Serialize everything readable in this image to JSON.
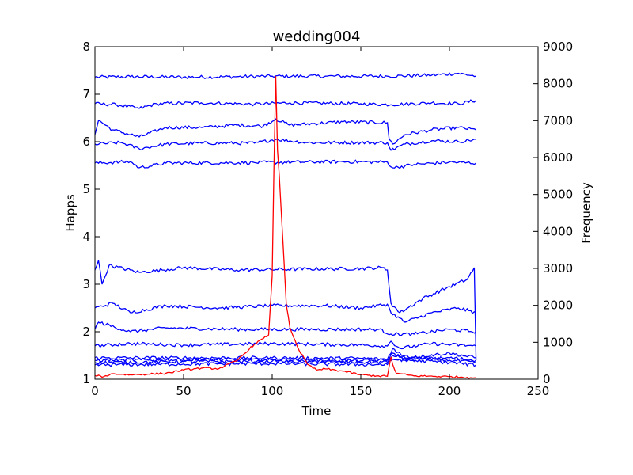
{
  "chart_data": {
    "type": "line",
    "title": "wedding004",
    "xlabel": "Time",
    "ylabel": "Happs",
    "y2label": "Frequency",
    "xlim": [
      0,
      250
    ],
    "ylim": [
      1,
      8
    ],
    "y2lim": [
      0,
      9000
    ],
    "xticks": [
      0,
      50,
      100,
      150,
      200,
      250
    ],
    "yticks": [
      1,
      2,
      3,
      4,
      5,
      6,
      7,
      8
    ],
    "y2ticks": [
      0,
      1000,
      2000,
      3000,
      4000,
      5000,
      6000,
      7000,
      8000,
      9000
    ],
    "grid": false,
    "x_range": [
      0,
      215
    ],
    "colors": {
      "happs": "#0000ff",
      "frequency": "#ff0000"
    },
    "series": [
      {
        "axis": "left",
        "color": "#0000ff",
        "points": [
          [
            0,
            7.36
          ],
          [
            20,
            7.37
          ],
          [
            50,
            7.36
          ],
          [
            80,
            7.37
          ],
          [
            100,
            7.38
          ],
          [
            130,
            7.38
          ],
          [
            165,
            7.38
          ],
          [
            190,
            7.4
          ],
          [
            205,
            7.44
          ],
          [
            215,
            7.38
          ]
        ]
      },
      {
        "axis": "left",
        "color": "#0000ff",
        "points": [
          [
            0,
            6.8
          ],
          [
            12,
            6.78
          ],
          [
            25,
            6.7
          ],
          [
            35,
            6.8
          ],
          [
            60,
            6.82
          ],
          [
            90,
            6.79
          ],
          [
            110,
            6.82
          ],
          [
            150,
            6.8
          ],
          [
            167,
            6.78
          ],
          [
            190,
            6.82
          ],
          [
            205,
            6.8
          ],
          [
            215,
            6.87
          ]
        ]
      },
      {
        "axis": "left",
        "color": "#0000ff",
        "points": [
          [
            0,
            6.15
          ],
          [
            2,
            6.45
          ],
          [
            10,
            6.25
          ],
          [
            25,
            6.1
          ],
          [
            40,
            6.3
          ],
          [
            60,
            6.3
          ],
          [
            80,
            6.35
          ],
          [
            95,
            6.33
          ],
          [
            102,
            6.48
          ],
          [
            110,
            6.35
          ],
          [
            140,
            6.42
          ],
          [
            165,
            6.4
          ],
          [
            166,
            6.05
          ],
          [
            168,
            5.95
          ],
          [
            175,
            6.15
          ],
          [
            190,
            6.25
          ],
          [
            205,
            6.3
          ],
          [
            215,
            6.25
          ]
        ]
      },
      {
        "axis": "left",
        "color": "#0000ff",
        "points": [
          [
            0,
            5.95
          ],
          [
            15,
            5.98
          ],
          [
            25,
            5.85
          ],
          [
            40,
            5.95
          ],
          [
            60,
            5.97
          ],
          [
            90,
            5.97
          ],
          [
            102,
            6.05
          ],
          [
            120,
            5.98
          ],
          [
            165,
            5.98
          ],
          [
            167,
            5.82
          ],
          [
            175,
            5.95
          ],
          [
            190,
            6.02
          ],
          [
            205,
            6.0
          ],
          [
            215,
            6.05
          ]
        ]
      },
      {
        "axis": "left",
        "color": "#0000ff",
        "points": [
          [
            0,
            5.55
          ],
          [
            20,
            5.58
          ],
          [
            25,
            5.45
          ],
          [
            40,
            5.55
          ],
          [
            90,
            5.56
          ],
          [
            140,
            5.58
          ],
          [
            165,
            5.57
          ],
          [
            168,
            5.45
          ],
          [
            180,
            5.52
          ],
          [
            200,
            5.57
          ],
          [
            215,
            5.55
          ]
        ]
      },
      {
        "axis": "left",
        "color": "#0000ff",
        "points": [
          [
            0,
            3.3
          ],
          [
            2,
            3.5
          ],
          [
            4,
            3.0
          ],
          [
            8,
            3.4
          ],
          [
            25,
            3.25
          ],
          [
            50,
            3.35
          ],
          [
            80,
            3.3
          ],
          [
            120,
            3.32
          ],
          [
            150,
            3.33
          ],
          [
            162,
            3.35
          ],
          [
            165,
            3.3
          ],
          [
            167,
            2.6
          ],
          [
            172,
            2.4
          ],
          [
            185,
            2.7
          ],
          [
            200,
            2.95
          ],
          [
            210,
            3.1
          ],
          [
            214,
            3.35
          ],
          [
            215,
            1.4
          ]
        ]
      },
      {
        "axis": "left",
        "color": "#0000ff",
        "points": [
          [
            0,
            2.5
          ],
          [
            10,
            2.6
          ],
          [
            20,
            2.4
          ],
          [
            40,
            2.55
          ],
          [
            70,
            2.5
          ],
          [
            100,
            2.55
          ],
          [
            130,
            2.55
          ],
          [
            150,
            2.5
          ],
          [
            165,
            2.58
          ],
          [
            167,
            2.4
          ],
          [
            175,
            2.2
          ],
          [
            190,
            2.4
          ],
          [
            205,
            2.5
          ],
          [
            215,
            2.4
          ]
        ]
      },
      {
        "axis": "left",
        "color": "#0000ff",
        "points": [
          [
            0,
            2.05
          ],
          [
            2,
            2.2
          ],
          [
            20,
            2.0
          ],
          [
            40,
            2.08
          ],
          [
            80,
            2.05
          ],
          [
            120,
            2.05
          ],
          [
            160,
            2.05
          ],
          [
            167,
            1.95
          ],
          [
            180,
            1.95
          ],
          [
            200,
            2.05
          ],
          [
            215,
            2.0
          ]
        ]
      },
      {
        "axis": "left",
        "color": "#0000ff",
        "points": [
          [
            0,
            1.7
          ],
          [
            20,
            1.75
          ],
          [
            50,
            1.72
          ],
          [
            100,
            1.75
          ],
          [
            150,
            1.72
          ],
          [
            165,
            1.7
          ],
          [
            167,
            1.8
          ],
          [
            172,
            1.65
          ],
          [
            190,
            1.75
          ],
          [
            215,
            1.7
          ]
        ]
      },
      {
        "axis": "left",
        "color": "#0000ff",
        "points": [
          [
            0,
            1.45
          ],
          [
            50,
            1.45
          ],
          [
            100,
            1.45
          ],
          [
            150,
            1.44
          ],
          [
            165,
            1.42
          ],
          [
            168,
            1.65
          ],
          [
            175,
            1.45
          ],
          [
            200,
            1.55
          ],
          [
            215,
            1.45
          ]
        ]
      },
      {
        "axis": "left",
        "color": "#0000ff",
        "points": [
          [
            0,
            1.4
          ],
          [
            50,
            1.41
          ],
          [
            100,
            1.41
          ],
          [
            150,
            1.39
          ],
          [
            165,
            1.4
          ],
          [
            168,
            1.55
          ],
          [
            175,
            1.4
          ],
          [
            200,
            1.45
          ],
          [
            215,
            1.4
          ]
        ]
      },
      {
        "axis": "left",
        "color": "#0000ff",
        "points": [
          [
            0,
            1.35
          ],
          [
            50,
            1.37
          ],
          [
            100,
            1.38
          ],
          [
            150,
            1.36
          ],
          [
            165,
            1.36
          ],
          [
            168,
            1.5
          ],
          [
            200,
            1.4
          ],
          [
            215,
            1.35
          ]
        ]
      },
      {
        "axis": "left",
        "color": "#0000ff",
        "points": [
          [
            0,
            1.3
          ],
          [
            50,
            1.32
          ],
          [
            100,
            1.33
          ],
          [
            150,
            1.31
          ],
          [
            165,
            1.31
          ],
          [
            168,
            1.42
          ],
          [
            200,
            1.35
          ],
          [
            215,
            1.3
          ]
        ]
      },
      {
        "axis": "right",
        "color": "#ff0000",
        "points": [
          [
            0,
            100
          ],
          [
            5,
            70
          ],
          [
            10,
            150
          ],
          [
            20,
            120
          ],
          [
            30,
            140
          ],
          [
            40,
            160
          ],
          [
            50,
            250
          ],
          [
            60,
            300
          ],
          [
            70,
            290
          ],
          [
            80,
            500
          ],
          [
            90,
            950
          ],
          [
            95,
            1100
          ],
          [
            98,
            1200
          ],
          [
            100,
            2800
          ],
          [
            101,
            5700
          ],
          [
            102,
            8200
          ],
          [
            103,
            6200
          ],
          [
            104,
            5500
          ],
          [
            106,
            3800
          ],
          [
            108,
            2000
          ],
          [
            110,
            1400
          ],
          [
            115,
            800
          ],
          [
            120,
            400
          ],
          [
            125,
            250
          ],
          [
            130,
            280
          ],
          [
            140,
            220
          ],
          [
            150,
            120
          ],
          [
            160,
            90
          ],
          [
            165,
            80
          ],
          [
            167,
            600
          ],
          [
            168,
            400
          ],
          [
            170,
            160
          ],
          [
            180,
            90
          ],
          [
            200,
            70
          ],
          [
            210,
            50
          ],
          [
            215,
            40
          ]
        ]
      }
    ]
  }
}
